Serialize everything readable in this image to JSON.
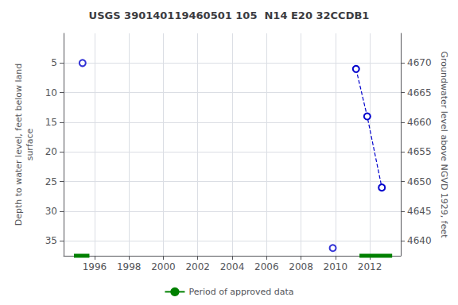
{
  "chart_data": {
    "type": "line",
    "title": "USGS 390140119460501 105  N14 E20 32CCDB1",
    "ylabel": "Depth to water level, feet below land\nsurface",
    "y2label": "Groundwater level above NGVD 1929, feet",
    "xlim": [
      1994.2,
      2013.8
    ],
    "xticks": [
      1996,
      1998,
      2000,
      2002,
      2004,
      2006,
      2008,
      2010,
      2012
    ],
    "ylim": [
      37.5,
      0
    ],
    "yticks": [
      5,
      10,
      15,
      20,
      25,
      30,
      35
    ],
    "y2lim": [
      4637.5,
      4675
    ],
    "y2ticks": [
      4640,
      4645,
      4650,
      4655,
      4660,
      4665,
      4670
    ],
    "grid": true,
    "legend": "bottom",
    "series": [
      {
        "type": "scatter",
        "color": "#0000cc",
        "marker": "circle",
        "x": [
          1995.3,
          2009.85
        ],
        "values": [
          5.0,
          36.2
        ]
      },
      {
        "type": "line",
        "color": "#0000cc",
        "marker": "circle",
        "line_style": "dashed",
        "x": [
          2011.2,
          2011.85,
          2012.7
        ],
        "values": [
          6.0,
          14.0,
          26.0
        ]
      },
      {
        "name": "Period of approved data",
        "type": "period_bars",
        "color": "#008000",
        "periods": [
          [
            1994.8,
            1995.7
          ],
          [
            2011.4,
            2013.3
          ]
        ]
      }
    ]
  }
}
